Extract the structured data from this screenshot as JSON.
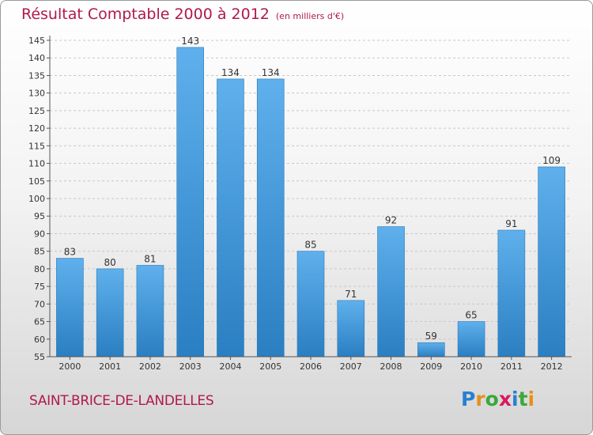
{
  "title": "Résultat Comptable 2000 à 2012",
  "unit": "(en milliers d'€)",
  "commune": "SAINT-BRICE-DE-LANDELLES",
  "brand": {
    "letters": [
      "P",
      "r",
      "o",
      "x",
      "i",
      "t",
      "i"
    ],
    "colors": [
      "#2a7fd0",
      "#e5901c",
      "#3aa83a",
      "#d81b60",
      "#2a7fd0",
      "#3aa83a",
      "#e5901c"
    ]
  },
  "colors": {
    "title": "#b0184f",
    "bar_light": "#5fb0ec",
    "bar_dark": "#2a7fc2"
  },
  "chart_data": {
    "type": "bar",
    "title": "Résultat Comptable 2000 à 2012",
    "xlabel": "",
    "ylabel": "",
    "categories": [
      "2000",
      "2001",
      "2002",
      "2003",
      "2004",
      "2005",
      "2006",
      "2007",
      "2008",
      "2009",
      "2010",
      "2011",
      "2012"
    ],
    "values": [
      83,
      80,
      81,
      143,
      134,
      134,
      85,
      71,
      92,
      59,
      65,
      91,
      109
    ],
    "ylim": [
      55,
      145
    ],
    "yticks": [
      55,
      60,
      65,
      70,
      75,
      80,
      85,
      90,
      95,
      100,
      105,
      110,
      115,
      120,
      125,
      130,
      135,
      140,
      145
    ],
    "grid": true,
    "legend": "none"
  }
}
